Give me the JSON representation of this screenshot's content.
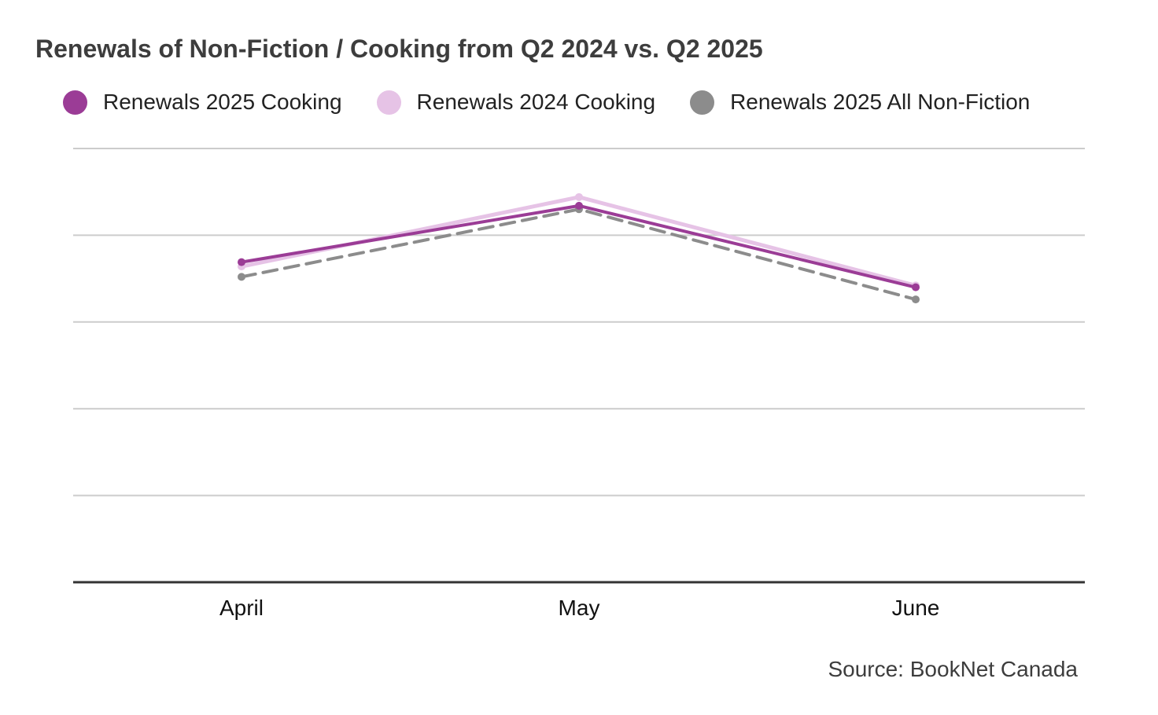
{
  "chart_data": {
    "type": "line",
    "title": "Renewals of Non-Fiction / Cooking from Q2 2024 vs. Q2 2025",
    "categories": [
      "April",
      "May",
      "June"
    ],
    "ylim": [
      0,
      5
    ],
    "grid": true,
    "legend_placement": "top-left",
    "series": [
      {
        "name": "Renewals 2025 Cooking",
        "values": [
          3.69,
          4.34,
          3.4
        ],
        "color": "#9b3c96",
        "style": "solid"
      },
      {
        "name": "Renewals 2024 Cooking",
        "values": [
          3.64,
          4.44,
          3.42
        ],
        "color": "#e6c3e6",
        "style": "solid"
      },
      {
        "name": "Renewals 2025 All Non-Fiction",
        "values": [
          3.52,
          4.3,
          3.26
        ],
        "color": "#8c8c8c",
        "style": "dashed"
      }
    ]
  },
  "source": "Source: BookNet Canada"
}
